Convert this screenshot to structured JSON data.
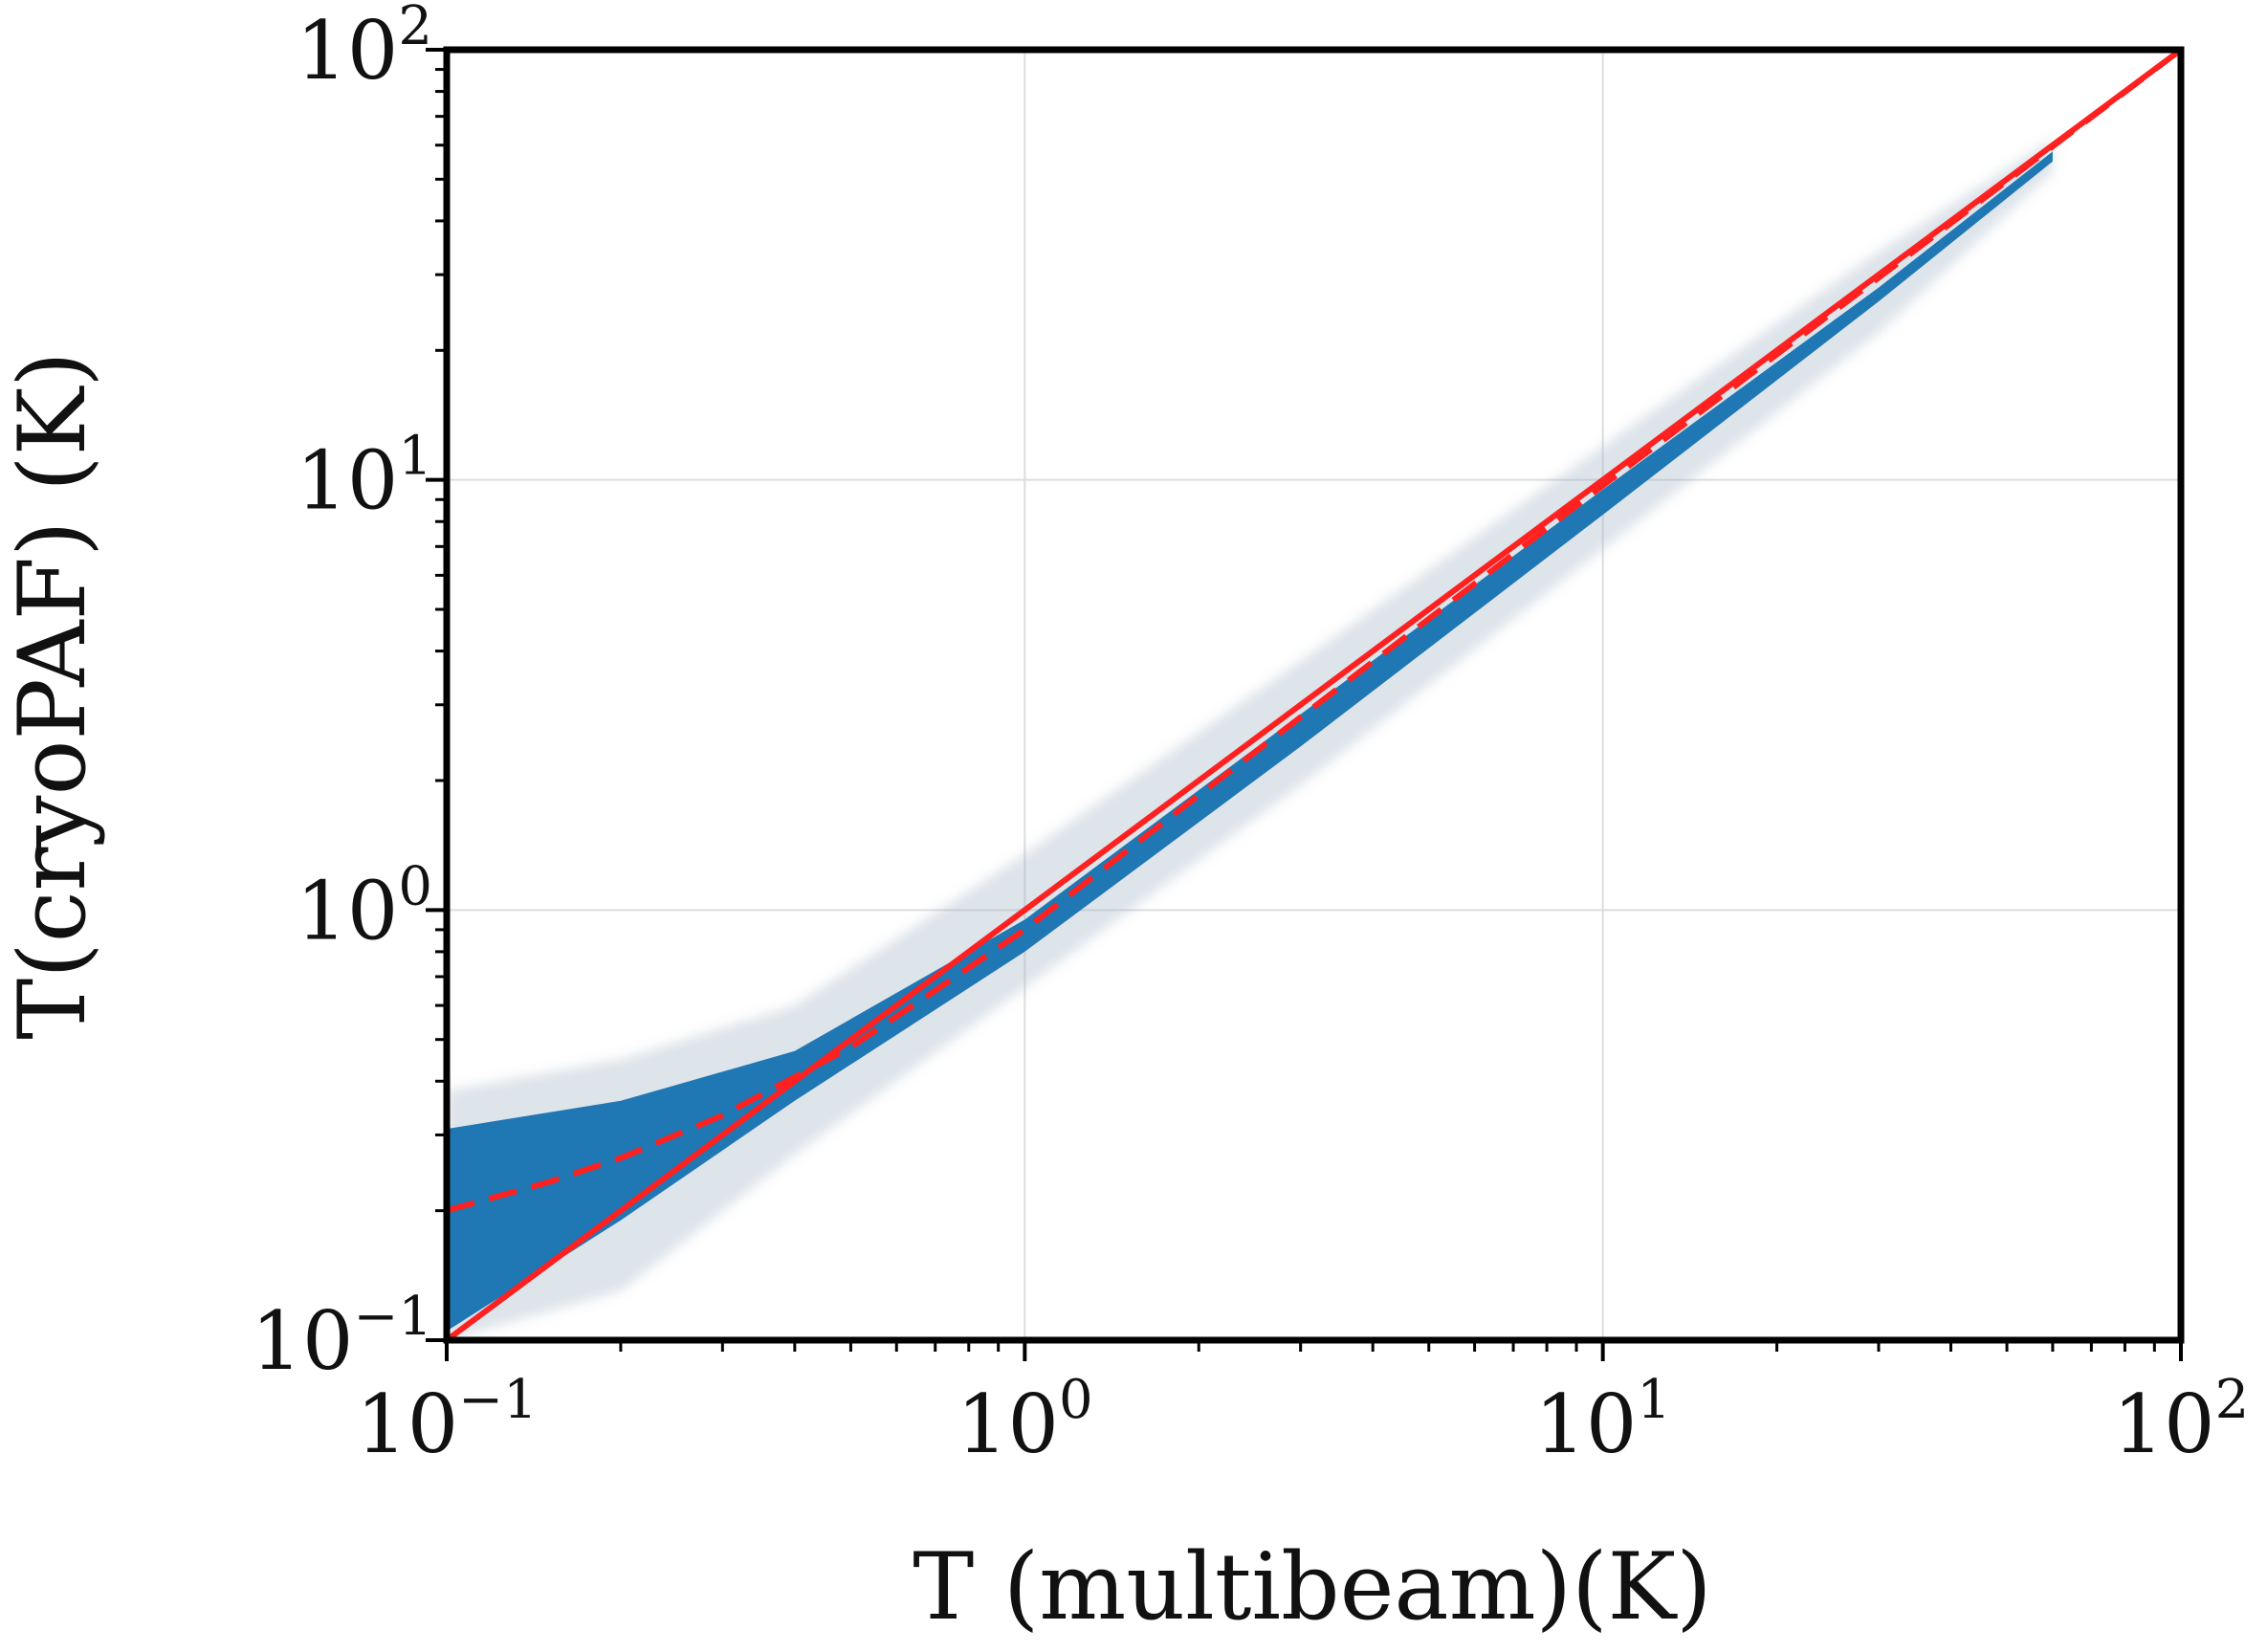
{
  "chart_data": {
    "type": "scatter",
    "xlabel": "T (multibeam)(K)",
    "ylabel": "T(cryoPAF) (K)",
    "x_scale": "log",
    "y_scale": "log",
    "xlim": [
      0.1,
      100
    ],
    "ylim": [
      0.1,
      100
    ],
    "grid": true,
    "x_ticks": [
      {
        "value": 0.1,
        "base": "10",
        "exp": "−1"
      },
      {
        "value": 1,
        "base": "10",
        "exp": "0"
      },
      {
        "value": 10,
        "base": "10",
        "exp": "1"
      },
      {
        "value": 100,
        "base": "10",
        "exp": "2"
      }
    ],
    "y_ticks": [
      {
        "value": 0.1,
        "base": "10",
        "exp": "−1"
      },
      {
        "value": 1,
        "base": "10",
        "exp": "0"
      },
      {
        "value": 10,
        "base": "10",
        "exp": "1"
      },
      {
        "value": 100,
        "base": "10",
        "exp": "2"
      }
    ],
    "scatter_band": {
      "color": "#1f77b4",
      "halo_color": "#9fb3c4",
      "core_upper": {
        "x": [
          0.1,
          0.2,
          0.4,
          1,
          3,
          10,
          30,
          60
        ],
        "y": [
          0.31,
          0.36,
          0.47,
          0.95,
          2.85,
          9.5,
          28,
          58
        ]
      },
      "core_lower": {
        "x": [
          0.1,
          0.2,
          0.4,
          1,
          3,
          10,
          30,
          60
        ],
        "y": [
          0.105,
          0.19,
          0.36,
          0.8,
          2.4,
          8.3,
          26,
          55
        ]
      },
      "halo_upper": {
        "x": [
          0.1,
          0.2,
          0.4,
          1,
          3,
          10,
          30,
          60
        ],
        "y": [
          0.38,
          0.45,
          0.6,
          1.35,
          3.8,
          12,
          34,
          62
        ]
      },
      "halo_lower": {
        "x": [
          0.1,
          0.2,
          0.4,
          1,
          3,
          10,
          30,
          60
        ],
        "y": [
          0.1,
          0.13,
          0.27,
          0.66,
          1.95,
          6.9,
          22,
          52
        ]
      }
    },
    "lines": [
      {
        "style": "solid",
        "color": "#ff2020",
        "x": [
          0.1,
          100
        ],
        "y": [
          0.1,
          100
        ]
      },
      {
        "style": "dashed",
        "color": "#ff2020",
        "x": [
          0.1,
          0.15,
          0.2,
          0.3,
          0.5,
          0.7,
          1,
          2,
          5,
          10,
          30,
          100
        ],
        "y": [
          0.2,
          0.233,
          0.265,
          0.333,
          0.48,
          0.65,
          0.9,
          1.85,
          4.75,
          9.7,
          29.5,
          100
        ]
      }
    ]
  }
}
